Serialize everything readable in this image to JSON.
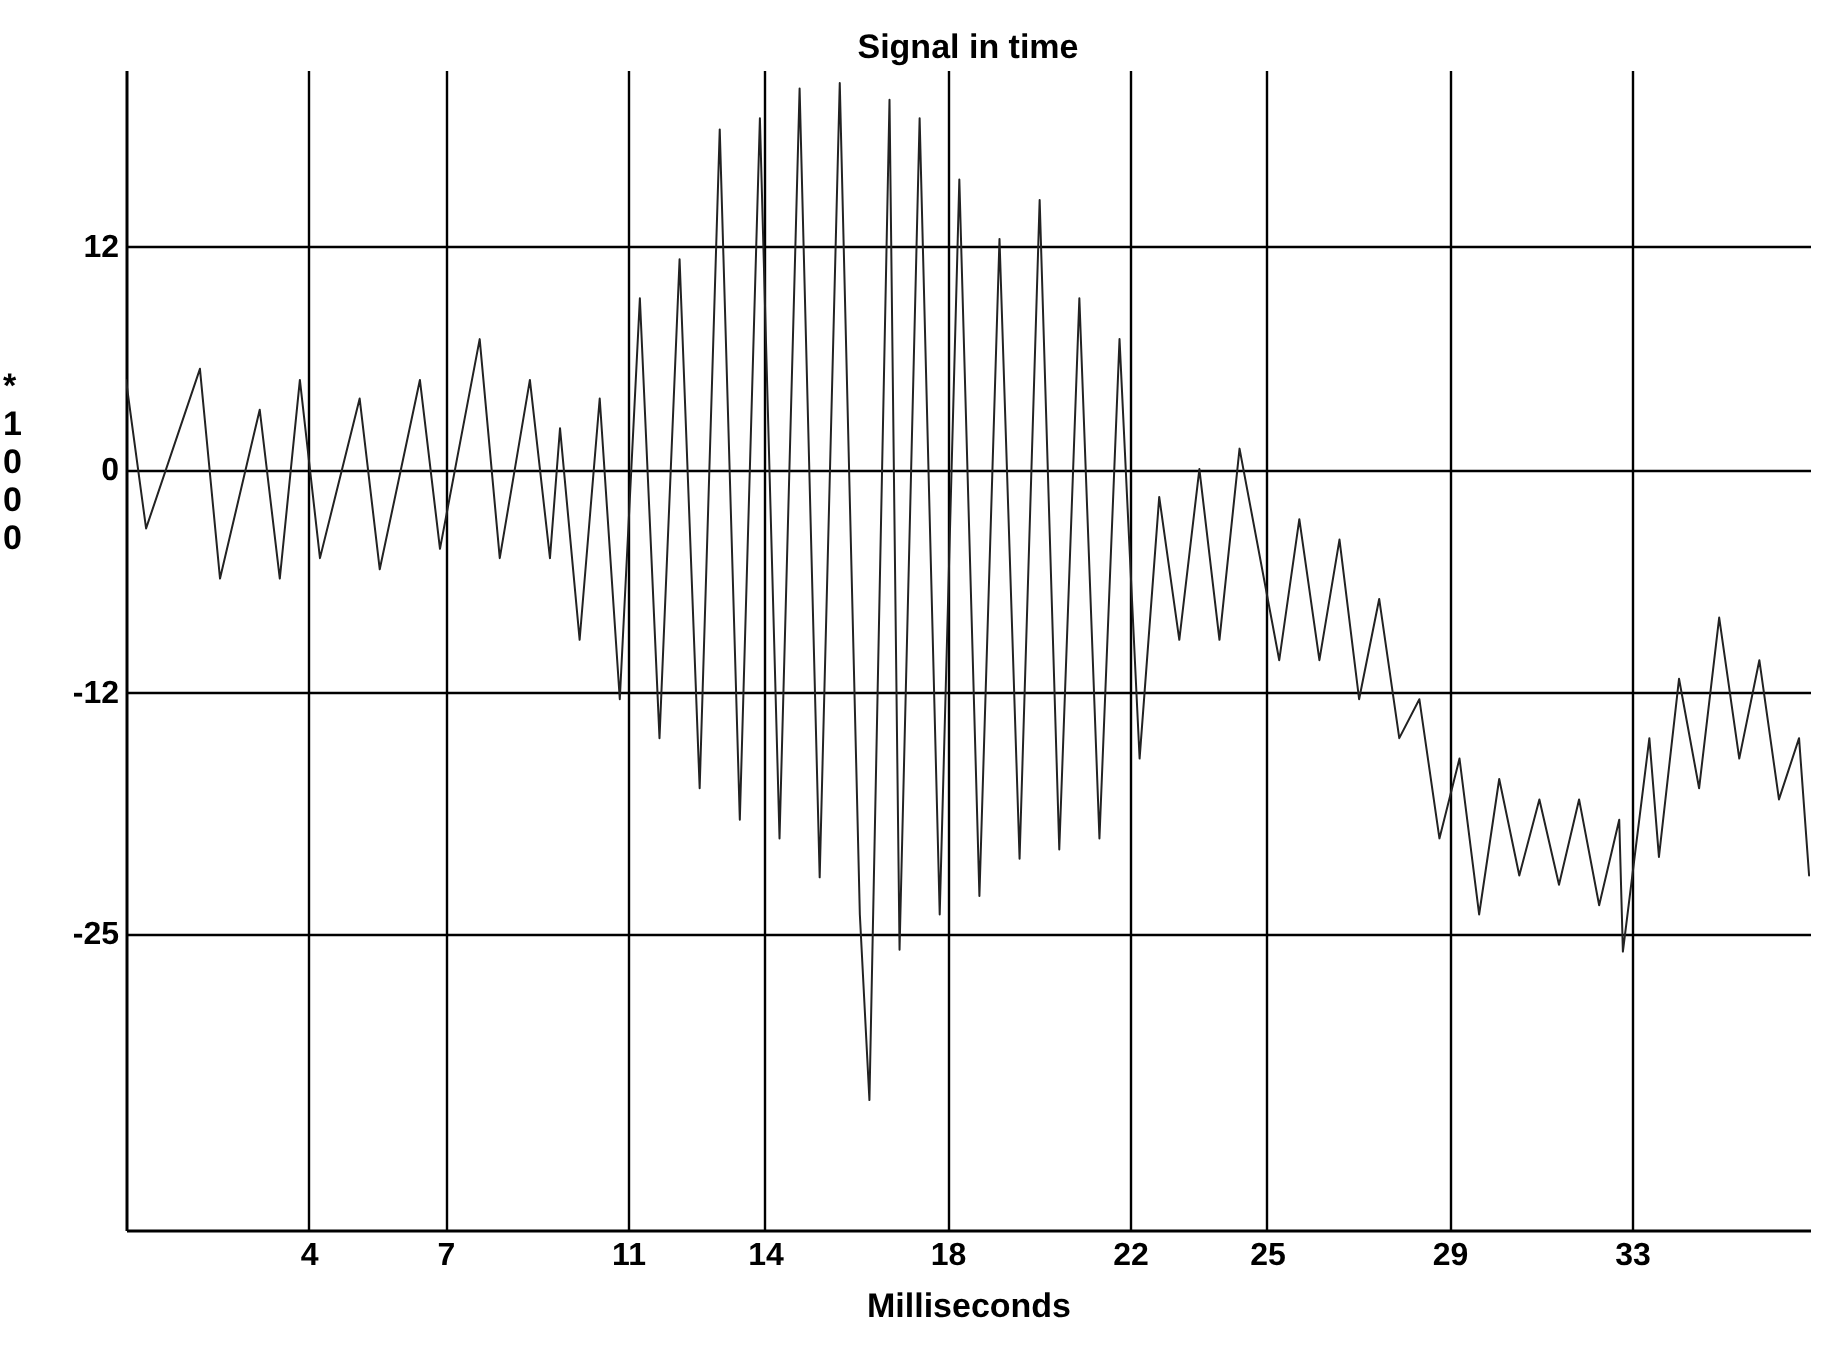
{
  "chart_data": {
    "type": "line",
    "title": "Signal in time",
    "xlabel": "Milliseconds",
    "ylabel": "*1000",
    "x": [
      0,
      0.44,
      1.62,
      2.06,
      2.93,
      3.37,
      3.81,
      4.25,
      5.12,
      5.56,
      6.44,
      6.88,
      7.75,
      8.19,
      8.85,
      9.29,
      9.51,
      9.94,
      10.38,
      10.82,
      11.26,
      11.69,
      12.13,
      12.57,
      13.01,
      13.45,
      13.89,
      14.32,
      14.76,
      15.2,
      15.64,
      16.08,
      16.29,
      16.73,
      16.95,
      17.39,
      17.83,
      18.26,
      18.7,
      19.14,
      19.58,
      20.02,
      20.45,
      20.89,
      21.33,
      21.77,
      22.21,
      22.64,
      23.08,
      23.52,
      23.96,
      24.4,
      25.27,
      25.71,
      26.15,
      26.59,
      27.02,
      27.46,
      27.9,
      28.34,
      28.78,
      29.22,
      29.65,
      30.09,
      30.53,
      30.97,
      31.4,
      31.84,
      32.28,
      32.72,
      32.8,
      33.38,
      33.59,
      34.03,
      34.47,
      34.91,
      35.35,
      35.79,
      36.22,
      36.66,
      36.88
    ],
    "series": [
      {
        "color": "#222222",
        "values": [
          4.8,
          -3.2,
          5.4,
          -5.9,
          3.2,
          -5.9,
          4.8,
          -4.8,
          3.8,
          -5.4,
          4.8,
          -4.3,
          7.0,
          -4.8,
          4.8,
          -4.8,
          2.2,
          -9.2,
          3.8,
          -12.4,
          9.2,
          -14.5,
          11.3,
          -17.2,
          18.3,
          -18.9,
          18.9,
          -19.9,
          20.5,
          -22.0,
          20.8,
          -24.0,
          -34.0,
          19.9,
          -25.9,
          18.9,
          -24.0,
          15.6,
          -23.0,
          12.4,
          -21.0,
          14.5,
          -20.5,
          9.2,
          -19.9,
          7.0,
          -15.6,
          -1.5,
          -9.2,
          0.0,
          -9.2,
          1.1,
          -10.3,
          -2.7,
          -10.3,
          -3.8,
          -12.4,
          -7.0,
          -14.5,
          -12.4,
          -19.9,
          -15.6,
          -24.0,
          -16.7,
          -21.9,
          -17.8,
          -22.4,
          -17.8,
          -23.5,
          -18.9,
          -26.0,
          -14.5,
          -20.9,
          -11.3,
          -17.2,
          -8.0,
          -15.6,
          -10.3,
          -17.8,
          -14.5,
          -21.9
        ]
      }
    ],
    "xlim": [
      0,
      36.9
    ],
    "ylim": [
      -41,
      21.5
    ],
    "xticks": [
      4,
      7,
      11,
      14,
      18,
      22,
      25,
      29,
      33
    ],
    "yticks": [
      12,
      0,
      -12,
      -25
    ],
    "grid": true
  }
}
